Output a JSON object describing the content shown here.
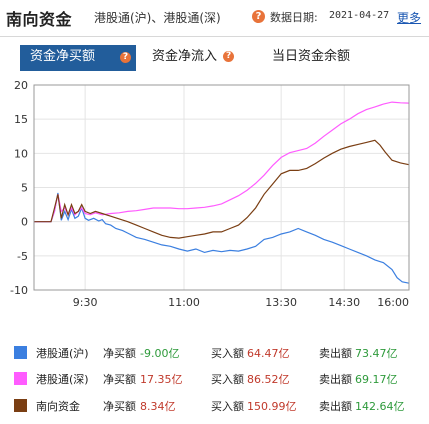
{
  "header": {
    "title": "南向资金",
    "subtitle": "港股通(沪)、港股通(深)",
    "help_glyph": "?",
    "date_label": "数据日期:",
    "date_value": "2021-04-27",
    "more_label": "更多"
  },
  "tabs": [
    {
      "label": "资金净买额",
      "active": true
    },
    {
      "label": "资金净流入",
      "active": false
    },
    {
      "label": "当日资金余额",
      "active": false
    }
  ],
  "colors": {
    "hgt": "#3b7fe0",
    "sgt": "#ff5cff",
    "total": "#7a3e13",
    "tab_active": "#225d9b",
    "positive": "#c0392b",
    "negative": "#2e9a3b"
  },
  "chart_data": {
    "type": "line",
    "y_ticks": [
      "20",
      "15",
      "10",
      "5",
      "0",
      "-5",
      "-10"
    ],
    "x_ticks": [
      "9:30",
      "11:00",
      "13:30",
      "14:30",
      "16:00"
    ],
    "ylim": [
      -10,
      20
    ],
    "series": [
      {
        "name": "港股通(沪)",
        "color": "#3b7fe0",
        "points": [
          [
            0,
            0
          ],
          [
            10,
            0
          ],
          [
            12,
            1.5
          ],
          [
            14,
            4.2
          ],
          [
            16,
            0.2
          ],
          [
            18,
            1.5
          ],
          [
            20,
            0.3
          ],
          [
            22,
            1.8
          ],
          [
            24,
            0.5
          ],
          [
            26,
            0.8
          ],
          [
            28,
            2.0
          ],
          [
            30,
            0.5
          ],
          [
            32,
            0.2
          ],
          [
            35,
            0.5
          ],
          [
            38,
            0.1
          ],
          [
            40,
            0.3
          ],
          [
            42,
            -0.3
          ],
          [
            45,
            -0.5
          ],
          [
            48,
            -1.0
          ],
          [
            52,
            -1.3
          ],
          [
            56,
            -1.8
          ],
          [
            60,
            -2.3
          ],
          [
            65,
            -2.6
          ],
          [
            70,
            -3.0
          ],
          [
            75,
            -3.4
          ],
          [
            80,
            -3.6
          ],
          [
            85,
            -4.0
          ],
          [
            90,
            -4.3
          ],
          [
            95,
            -4.0
          ],
          [
            100,
            -4.5
          ],
          [
            105,
            -4.2
          ],
          [
            110,
            -4.4
          ],
          [
            115,
            -4.2
          ],
          [
            120,
            -4.3
          ],
          [
            125,
            -4.0
          ],
          [
            130,
            -3.6
          ],
          [
            135,
            -2.6
          ],
          [
            140,
            -2.3
          ],
          [
            145,
            -1.8
          ],
          [
            150,
            -1.5
          ],
          [
            155,
            -1.0
          ],
          [
            160,
            -1.5
          ],
          [
            165,
            -2.0
          ],
          [
            170,
            -2.6
          ],
          [
            175,
            -3.0
          ],
          [
            180,
            -3.5
          ],
          [
            185,
            -4.0
          ],
          [
            190,
            -4.5
          ],
          [
            195,
            -5.0
          ],
          [
            200,
            -5.6
          ],
          [
            205,
            -6.0
          ],
          [
            210,
            -7.0
          ],
          [
            213,
            -8.2
          ],
          [
            216,
            -8.8
          ],
          [
            220,
            -9.0
          ]
        ]
      },
      {
        "name": "港股通(深)",
        "color": "#ff5cff",
        "points": [
          [
            0,
            0
          ],
          [
            10,
            0
          ],
          [
            12,
            1.5
          ],
          [
            14,
            4.0
          ],
          [
            16,
            1.5
          ],
          [
            18,
            2.0
          ],
          [
            20,
            1.0
          ],
          [
            22,
            2.0
          ],
          [
            24,
            1.0
          ],
          [
            26,
            1.5
          ],
          [
            28,
            2.0
          ],
          [
            30,
            1.2
          ],
          [
            33,
            1.0
          ],
          [
            36,
            1.3
          ],
          [
            40,
            1.0
          ],
          [
            45,
            1.2
          ],
          [
            50,
            1.3
          ],
          [
            55,
            1.5
          ],
          [
            60,
            1.6
          ],
          [
            65,
            1.8
          ],
          [
            70,
            2.0
          ],
          [
            75,
            2.0
          ],
          [
            80,
            2.0
          ],
          [
            85,
            1.9
          ],
          [
            90,
            1.9
          ],
          [
            95,
            2.0
          ],
          [
            100,
            2.1
          ],
          [
            105,
            2.3
          ],
          [
            110,
            2.6
          ],
          [
            115,
            3.2
          ],
          [
            120,
            3.8
          ],
          [
            125,
            4.6
          ],
          [
            130,
            5.6
          ],
          [
            135,
            6.8
          ],
          [
            140,
            8.2
          ],
          [
            145,
            9.4
          ],
          [
            150,
            10.1
          ],
          [
            155,
            10.4
          ],
          [
            160,
            10.7
          ],
          [
            165,
            11.5
          ],
          [
            170,
            12.5
          ],
          [
            175,
            13.4
          ],
          [
            180,
            14.3
          ],
          [
            185,
            15.0
          ],
          [
            190,
            15.8
          ],
          [
            195,
            16.4
          ],
          [
            200,
            16.8
          ],
          [
            205,
            17.2
          ],
          [
            210,
            17.5
          ],
          [
            215,
            17.4
          ],
          [
            220,
            17.35
          ]
        ]
      },
      {
        "name": "南向资金",
        "color": "#7a3e13",
        "points": [
          [
            0,
            0
          ],
          [
            10,
            0
          ],
          [
            12,
            2.0
          ],
          [
            14,
            4.0
          ],
          [
            16,
            0.5
          ],
          [
            18,
            2.5
          ],
          [
            20,
            1.0
          ],
          [
            22,
            2.5
          ],
          [
            24,
            1.2
          ],
          [
            26,
            1.5
          ],
          [
            28,
            2.5
          ],
          [
            30,
            1.5
          ],
          [
            33,
            1.2
          ],
          [
            36,
            1.5
          ],
          [
            40,
            1.2
          ],
          [
            45,
            0.8
          ],
          [
            50,
            0.4
          ],
          [
            55,
            0.0
          ],
          [
            60,
            -0.5
          ],
          [
            65,
            -1.0
          ],
          [
            70,
            -1.5
          ],
          [
            75,
            -2.0
          ],
          [
            80,
            -2.3
          ],
          [
            85,
            -2.4
          ],
          [
            90,
            -2.2
          ],
          [
            95,
            -2.0
          ],
          [
            100,
            -1.8
          ],
          [
            105,
            -1.5
          ],
          [
            110,
            -1.5
          ],
          [
            115,
            -1.0
          ],
          [
            120,
            -0.5
          ],
          [
            125,
            0.6
          ],
          [
            130,
            2.0
          ],
          [
            135,
            4.0
          ],
          [
            140,
            5.5
          ],
          [
            145,
            7.0
          ],
          [
            150,
            7.5
          ],
          [
            155,
            7.5
          ],
          [
            160,
            7.8
          ],
          [
            165,
            8.5
          ],
          [
            170,
            9.3
          ],
          [
            175,
            10.0
          ],
          [
            180,
            10.6
          ],
          [
            185,
            11.0
          ],
          [
            190,
            11.3
          ],
          [
            195,
            11.6
          ],
          [
            200,
            11.9
          ],
          [
            203,
            11.2
          ],
          [
            206,
            10.2
          ],
          [
            210,
            9.0
          ],
          [
            215,
            8.6
          ],
          [
            220,
            8.34
          ]
        ]
      }
    ]
  },
  "legend": [
    {
      "name": "港股通(沪)",
      "net_label": "净买额",
      "net_value": "-9.00亿",
      "net_sign": "neg",
      "buy_label": "买入额",
      "buy_value": "64.47亿",
      "sell_label": "卖出额",
      "sell_value": "73.47亿",
      "color": "#3b7fe0"
    },
    {
      "name": "港股通(深)",
      "net_label": "净买额",
      "net_value": "17.35亿",
      "net_sign": "pos",
      "buy_label": "买入额",
      "buy_value": "86.52亿",
      "sell_label": "卖出额",
      "sell_value": "69.17亿",
      "color": "#ff5cff"
    },
    {
      "name": "南向资金",
      "net_label": "净买额",
      "net_value": "8.34亿",
      "net_sign": "pos",
      "buy_label": "买入额",
      "buy_value": "150.99亿",
      "sell_label": "卖出额",
      "sell_value": "142.64亿",
      "color": "#7a3e13"
    }
  ]
}
